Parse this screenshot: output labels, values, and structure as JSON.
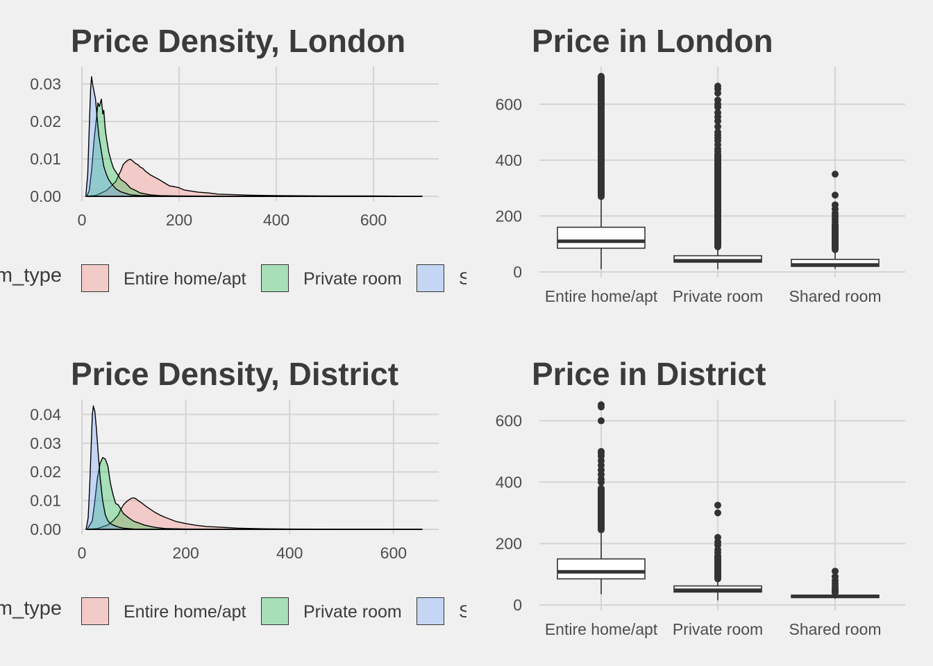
{
  "colors": {
    "entire": "#f8766d",
    "private": "#00ba38",
    "shared": "#619cff",
    "grid": "#d4d4d4",
    "box": "#333333"
  },
  "legend": {
    "title": "room_type",
    "items": [
      {
        "label": "Entire home/apt",
        "key": "entire"
      },
      {
        "label": "Private room",
        "key": "private"
      },
      {
        "label": "Shared room",
        "key": "shared"
      }
    ]
  },
  "chart_data": [
    {
      "type": "area",
      "title": "Price Density, London",
      "xlabel": "",
      "ylabel": "",
      "xlim": [
        0,
        700
      ],
      "ylim": [
        0,
        0.033
      ],
      "x_ticks": [
        0,
        200,
        400,
        600
      ],
      "y_ticks": [
        0.0,
        0.01,
        0.02,
        0.03
      ],
      "legend_position": "bottom",
      "series": [
        {
          "name": "Entire home/apt",
          "key": "entire",
          "x": [
            10,
            30,
            50,
            60,
            70,
            75,
            80,
            85,
            90,
            95,
            100,
            105,
            110,
            115,
            120,
            125,
            130,
            140,
            150,
            160,
            170,
            180,
            190,
            200,
            210,
            220,
            240,
            260,
            280,
            300,
            350,
            400,
            500,
            600,
            700
          ],
          "y": [
            0.0,
            0.0003,
            0.0015,
            0.0027,
            0.004,
            0.0055,
            0.0068,
            0.0085,
            0.0092,
            0.0097,
            0.0099,
            0.0094,
            0.0088,
            0.0085,
            0.0078,
            0.0075,
            0.0068,
            0.0058,
            0.0051,
            0.0044,
            0.0036,
            0.0028,
            0.0026,
            0.0023,
            0.0017,
            0.0015,
            0.0011,
            0.0009,
            0.0006,
            0.0005,
            0.0003,
            0.0002,
            0.0001,
            0.0001,
            0.0
          ]
        },
        {
          "name": "Private room",
          "key": "private",
          "x": [
            10,
            15,
            20,
            25,
            30,
            33,
            36,
            40,
            43,
            45,
            48,
            50,
            55,
            60,
            65,
            70,
            75,
            80,
            90,
            100,
            110,
            120,
            140,
            160,
            200,
            250,
            300,
            700
          ],
          "y": [
            0.0,
            0.0015,
            0.007,
            0.015,
            0.021,
            0.025,
            0.024,
            0.026,
            0.022,
            0.023,
            0.018,
            0.016,
            0.012,
            0.0095,
            0.0075,
            0.0065,
            0.0055,
            0.0045,
            0.0036,
            0.0022,
            0.0016,
            0.0009,
            0.0004,
            0.0002,
            0.0001,
            5e-05,
            0.0,
            0.0
          ]
        },
        {
          "name": "Shared room",
          "key": "shared",
          "x": [
            8,
            12,
            15,
            18,
            20,
            22,
            25,
            28,
            30,
            32,
            35,
            40,
            45,
            50,
            55,
            60,
            70,
            80,
            90,
            100,
            120,
            150,
            200,
            700
          ],
          "y": [
            0.0,
            0.006,
            0.018,
            0.029,
            0.032,
            0.03,
            0.028,
            0.026,
            0.023,
            0.02,
            0.016,
            0.012,
            0.008,
            0.006,
            0.0045,
            0.0035,
            0.002,
            0.0012,
            0.0008,
            0.0004,
            0.0002,
            0.0001,
            0.0,
            0.0
          ]
        }
      ]
    },
    {
      "type": "box",
      "title": "Price in London",
      "xlabel": "",
      "ylabel": "",
      "ylim": [
        0,
        710
      ],
      "y_ticks": [
        0,
        200,
        400,
        600
      ],
      "categories": [
        "Entire home/apt",
        "Private room",
        "Shared room"
      ],
      "boxes": [
        {
          "whisker_low": 10,
          "q1": 85,
          "median": 110,
          "q3": 160,
          "whisker_high": 270,
          "outlier_range": [
            270,
            700
          ],
          "outliers": []
        },
        {
          "whisker_low": 10,
          "q1": 35,
          "median": 40,
          "q3": 58,
          "whisker_high": 90,
          "outlier_range": [
            90,
            420
          ],
          "outliers": [
            430,
            440,
            455,
            470,
            480,
            490,
            500,
            520,
            540,
            555,
            570,
            590,
            600,
            615,
            640,
            655,
            665
          ]
        },
        {
          "whisker_low": 12,
          "q1": 20,
          "median": 25,
          "q3": 45,
          "whisker_high": 80,
          "outlier_range": [
            80,
            170
          ],
          "outliers": [
            180,
            190,
            200,
            210,
            225,
            240,
            275,
            350
          ]
        }
      ]
    },
    {
      "type": "area",
      "title": "Price Density, District",
      "xlabel": "",
      "ylabel": "",
      "xlim": [
        0,
        655
      ],
      "ylim": [
        0,
        0.043
      ],
      "x_ticks": [
        0,
        200,
        400,
        600
      ],
      "y_ticks": [
        0.0,
        0.01,
        0.02,
        0.03,
        0.04
      ],
      "legend_position": "bottom",
      "series": [
        {
          "name": "Entire home/apt",
          "key": "entire",
          "x": [
            10,
            30,
            50,
            60,
            70,
            75,
            80,
            85,
            90,
            95,
            100,
            105,
            110,
            115,
            120,
            125,
            130,
            140,
            150,
            160,
            170,
            180,
            190,
            200,
            220,
            240,
            260,
            280,
            300,
            350,
            400,
            500,
            655
          ],
          "y": [
            0.0,
            0.0003,
            0.0015,
            0.003,
            0.005,
            0.007,
            0.0085,
            0.0095,
            0.0102,
            0.0108,
            0.011,
            0.0105,
            0.0098,
            0.0092,
            0.0085,
            0.0078,
            0.0072,
            0.006,
            0.005,
            0.0042,
            0.0035,
            0.0028,
            0.0024,
            0.002,
            0.0014,
            0.001,
            0.0008,
            0.0006,
            0.0004,
            0.0002,
            0.0001,
            5e-05,
            0.0
          ]
        },
        {
          "name": "Private room",
          "key": "private",
          "x": [
            10,
            20,
            25,
            30,
            35,
            40,
            45,
            50,
            55,
            60,
            65,
            70,
            75,
            80,
            90,
            100,
            110,
            120,
            140,
            160,
            200,
            300,
            655
          ],
          "y": [
            0.0,
            0.003,
            0.01,
            0.018,
            0.023,
            0.025,
            0.0245,
            0.022,
            0.016,
            0.012,
            0.009,
            0.0085,
            0.007,
            0.0055,
            0.004,
            0.0028,
            0.0022,
            0.0015,
            0.0007,
            0.0003,
            0.0001,
            0.0,
            0.0
          ]
        },
        {
          "name": "Shared room",
          "key": "shared",
          "x": [
            8,
            12,
            15,
            18,
            20,
            22,
            25,
            28,
            30,
            32,
            35,
            40,
            45,
            50,
            55,
            60,
            70,
            80,
            100,
            150,
            655
          ],
          "y": [
            0.0,
            0.004,
            0.015,
            0.03,
            0.04,
            0.043,
            0.041,
            0.035,
            0.03,
            0.025,
            0.018,
            0.01,
            0.005,
            0.003,
            0.002,
            0.0015,
            0.0008,
            0.0004,
            0.0001,
            0.0,
            0.0
          ]
        }
      ]
    },
    {
      "type": "box",
      "title": "Price in District",
      "xlabel": "",
      "ylabel": "",
      "ylim": [
        0,
        660
      ],
      "y_ticks": [
        0,
        200,
        400,
        600
      ],
      "categories": [
        "Entire home/apt",
        "Private room",
        "Shared room"
      ],
      "boxes": [
        {
          "whisker_low": 35,
          "q1": 85,
          "median": 108,
          "q3": 150,
          "whisker_high": 245,
          "outlier_range": [
            245,
            380
          ],
          "outliers": [
            400,
            410,
            425,
            440,
            455,
            470,
            485,
            495,
            500,
            600,
            645,
            652
          ]
        },
        {
          "whisker_low": 15,
          "q1": 42,
          "median": 48,
          "q3": 62,
          "whisker_high": 85,
          "outlier_range": [
            85,
            160
          ],
          "outliers": [
            170,
            180,
            195,
            205,
            220,
            300,
            325
          ]
        },
        {
          "whisker_low": 20,
          "q1": 24,
          "median": 28,
          "q3": 32,
          "whisker_high": 40,
          "outlier_range": [
            40,
            50
          ],
          "outliers": [
            55,
            62,
            70,
            80,
            92,
            110
          ]
        }
      ]
    }
  ]
}
